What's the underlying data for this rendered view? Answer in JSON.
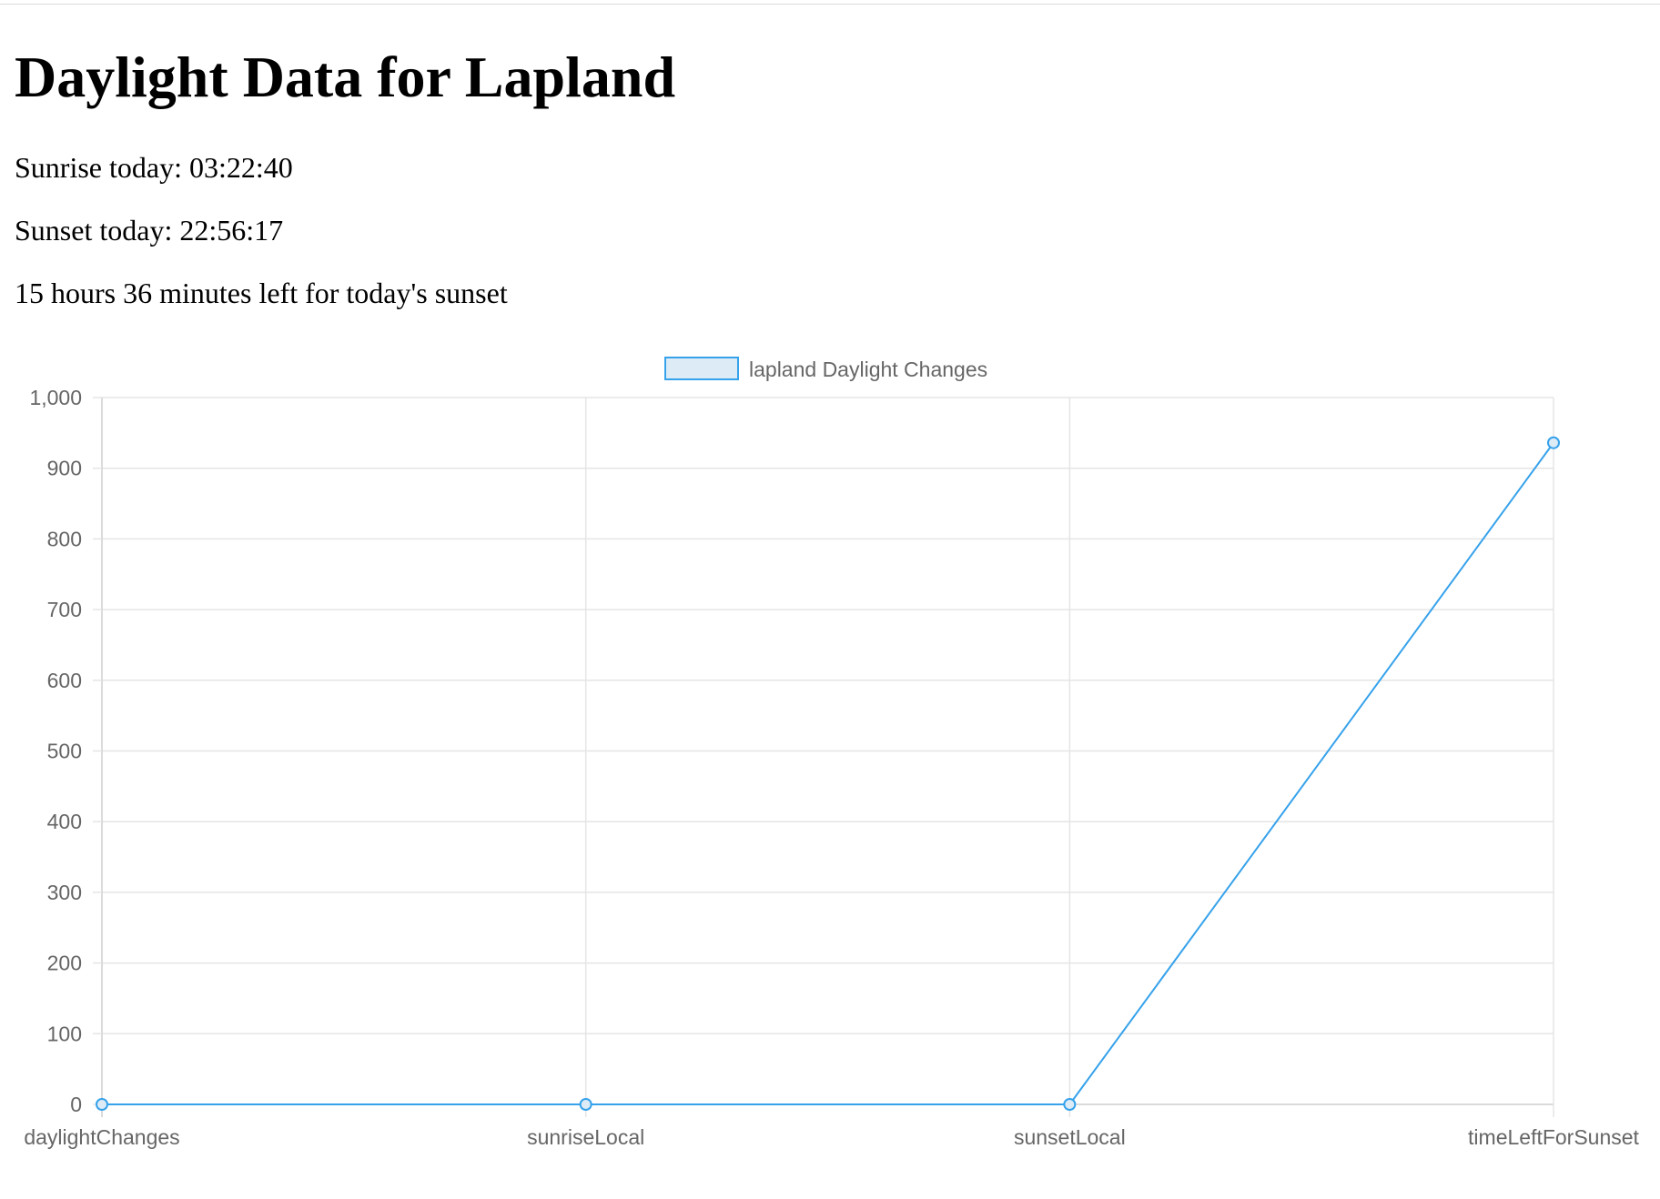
{
  "page": {
    "title": "Daylight Data for Lapland",
    "sunrise_text": "Sunrise today: 03:22:40",
    "sunset_text": "Sunset today: 22:56:17",
    "time_left_text": "15 hours 36 minutes left for today's sunset"
  },
  "chart_data": {
    "type": "line",
    "categories": [
      "daylightChanges",
      "sunriseLocal",
      "sunsetLocal",
      "timeLeftForSunset"
    ],
    "series": [
      {
        "name": "lapland Daylight Changes",
        "values": [
          0,
          0,
          0,
          936
        ]
      }
    ],
    "ylim": [
      0,
      1000
    ],
    "yticks": [
      0,
      100,
      200,
      300,
      400,
      500,
      600,
      700,
      800,
      900,
      1000
    ],
    "ytick_labels": [
      "0",
      "100",
      "200",
      "300",
      "400",
      "500",
      "600",
      "700",
      "800",
      "900",
      "1,000"
    ],
    "xlabel": "",
    "ylabel": "",
    "grid": true,
    "legend_position": "top-center",
    "colors": {
      "line": "#36a2eb",
      "fill": "#ddebf7",
      "grid": "#e5e5e5",
      "text": "#666666"
    }
  }
}
